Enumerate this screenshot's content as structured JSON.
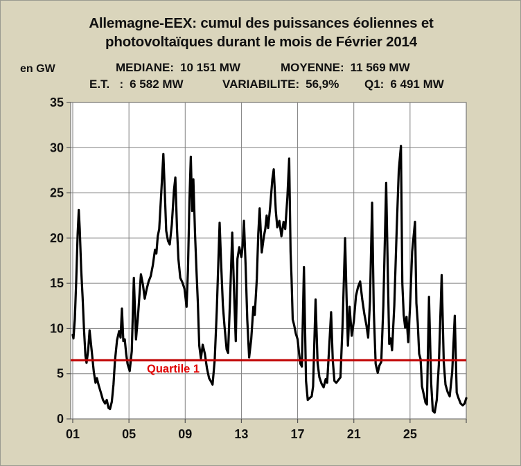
{
  "title": {
    "line1": "Allemagne-EEX: cumul des puissances  éoliennes et",
    "line2": "photovoltaïques durant le mois de Février 2014"
  },
  "stats": {
    "line1": [
      {
        "label": "MEDIANE:",
        "value": "10 151 MW"
      },
      {
        "label": "MOYENNE:",
        "value": "11 569 MW"
      }
    ],
    "line2": [
      {
        "label": "E.T.   :",
        "value": "6 582 MW"
      },
      {
        "label": "VARIABILITE:",
        "value": "56,9%"
      },
      {
        "label": "Q1:",
        "value": "6 491 MW"
      }
    ]
  },
  "y_axis_unit": "en GW",
  "colors": {
    "background": "#dad5bc",
    "plot_background": "#ffffff",
    "gridline": "#808080",
    "frame": "#787878",
    "series": "#000000",
    "quartile_line": "#c00000",
    "quartile_text": "#e00000",
    "text": "#111111"
  },
  "chart_data": {
    "type": "line",
    "title": "Allemagne-EEX: cumul des puissances éoliennes et photovoltaïques durant le mois de Février 2014",
    "ylabel": "en GW",
    "xlabel": "",
    "xlim": [
      1,
      29
    ],
    "ylim": [
      0,
      35
    ],
    "grid": true,
    "y_ticks": [
      0,
      5,
      10,
      15,
      20,
      25,
      30,
      35
    ],
    "x_tick_days": [
      1,
      5,
      9,
      13,
      17,
      21,
      25,
      29
    ],
    "x_tick_labels": [
      "01",
      "05",
      "09",
      "13",
      "17",
      "21",
      "25",
      ""
    ],
    "quartile1_line": {
      "value_gw": 6.49,
      "label": "Quartile 1"
    },
    "statistics": {
      "mediane_mw": "10 151",
      "moyenne_mw": "11 569",
      "ecart_type_mw": "6 582",
      "variabilite_pct": "56,9",
      "q1_mw": "6 491"
    },
    "series": [
      {
        "unit": "GW",
        "x_unit": "jour",
        "points": [
          [
            1.0,
            9.3
          ],
          [
            1.05,
            8.9
          ],
          [
            1.15,
            11.0
          ],
          [
            1.25,
            15.5
          ],
          [
            1.35,
            20.5
          ],
          [
            1.43,
            23.1
          ],
          [
            1.5,
            21.0
          ],
          [
            1.6,
            16.5
          ],
          [
            1.7,
            13.5
          ],
          [
            1.8,
            10.0
          ],
          [
            1.9,
            7.0
          ],
          [
            1.98,
            6.2
          ],
          [
            2.1,
            7.6
          ],
          [
            2.2,
            9.8
          ],
          [
            2.35,
            7.5
          ],
          [
            2.5,
            5.2
          ],
          [
            2.62,
            4.0
          ],
          [
            2.72,
            4.5
          ],
          [
            2.85,
            3.7
          ],
          [
            3.0,
            2.9
          ],
          [
            3.15,
            2.1
          ],
          [
            3.3,
            1.7
          ],
          [
            3.42,
            2.1
          ],
          [
            3.55,
            1.2
          ],
          [
            3.65,
            1.1
          ],
          [
            3.78,
            1.9
          ],
          [
            3.9,
            3.8
          ],
          [
            4.0,
            6.4
          ],
          [
            4.15,
            8.7
          ],
          [
            4.3,
            9.7
          ],
          [
            4.4,
            9.0
          ],
          [
            4.5,
            12.2
          ],
          [
            4.6,
            8.6
          ],
          [
            4.7,
            8.8
          ],
          [
            4.8,
            7.2
          ],
          [
            4.9,
            6.1
          ],
          [
            5.05,
            5.3
          ],
          [
            5.2,
            7.5
          ],
          [
            5.35,
            15.6
          ],
          [
            5.5,
            8.8
          ],
          [
            5.65,
            11.5
          ],
          [
            5.85,
            16.0
          ],
          [
            6.0,
            14.8
          ],
          [
            6.12,
            13.3
          ],
          [
            6.25,
            14.3
          ],
          [
            6.4,
            15.2
          ],
          [
            6.55,
            15.8
          ],
          [
            6.7,
            17.0
          ],
          [
            6.85,
            18.7
          ],
          [
            6.95,
            18.3
          ],
          [
            7.05,
            20.2
          ],
          [
            7.15,
            21.0
          ],
          [
            7.28,
            24.5
          ],
          [
            7.45,
            29.3
          ],
          [
            7.55,
            25.0
          ],
          [
            7.65,
            20.8
          ],
          [
            7.78,
            19.7
          ],
          [
            7.9,
            19.3
          ],
          [
            8.05,
            21.5
          ],
          [
            8.2,
            25.3
          ],
          [
            8.3,
            26.7
          ],
          [
            8.42,
            21.0
          ],
          [
            8.52,
            17.7
          ],
          [
            8.65,
            15.6
          ],
          [
            8.8,
            15.1
          ],
          [
            8.95,
            14.4
          ],
          [
            9.1,
            12.4
          ],
          [
            9.2,
            16.5
          ],
          [
            9.3,
            24.0
          ],
          [
            9.4,
            29.0
          ],
          [
            9.5,
            23.0
          ],
          [
            9.58,
            26.5
          ],
          [
            9.7,
            20.5
          ],
          [
            9.8,
            16.6
          ],
          [
            9.9,
            13.0
          ],
          [
            10.0,
            8.1
          ],
          [
            10.12,
            6.7
          ],
          [
            10.25,
            8.2
          ],
          [
            10.4,
            7.2
          ],
          [
            10.55,
            5.6
          ],
          [
            10.7,
            4.5
          ],
          [
            10.85,
            4.1
          ],
          [
            10.95,
            3.8
          ],
          [
            11.1,
            6.5
          ],
          [
            11.25,
            12.0
          ],
          [
            11.45,
            21.7
          ],
          [
            11.55,
            17.5
          ],
          [
            11.68,
            12.6
          ],
          [
            11.8,
            10.2
          ],
          [
            11.95,
            7.7
          ],
          [
            12.05,
            7.3
          ],
          [
            12.2,
            13.5
          ],
          [
            12.35,
            20.6
          ],
          [
            12.5,
            13.0
          ],
          [
            12.6,
            8.6
          ],
          [
            12.72,
            17.7
          ],
          [
            12.85,
            19.0
          ],
          [
            13.0,
            17.9
          ],
          [
            13.08,
            19.0
          ],
          [
            13.18,
            21.9
          ],
          [
            13.3,
            17.0
          ],
          [
            13.42,
            11.0
          ],
          [
            13.55,
            6.8
          ],
          [
            13.7,
            8.8
          ],
          [
            13.85,
            12.4
          ],
          [
            13.95,
            11.5
          ],
          [
            14.1,
            15.5
          ],
          [
            14.2,
            20.5
          ],
          [
            14.3,
            23.3
          ],
          [
            14.45,
            18.4
          ],
          [
            14.6,
            20.2
          ],
          [
            14.7,
            21.0
          ],
          [
            14.8,
            22.5
          ],
          [
            14.9,
            21.1
          ],
          [
            15.05,
            23.5
          ],
          [
            15.2,
            26.5
          ],
          [
            15.3,
            27.6
          ],
          [
            15.45,
            23.0
          ],
          [
            15.55,
            21.2
          ],
          [
            15.7,
            21.9
          ],
          [
            15.85,
            20.2
          ],
          [
            16.0,
            21.8
          ],
          [
            16.12,
            21.0
          ],
          [
            16.27,
            24.5
          ],
          [
            16.4,
            28.8
          ],
          [
            16.5,
            18.5
          ],
          [
            16.57,
            15.6
          ],
          [
            16.65,
            11.0
          ],
          [
            16.75,
            10.4
          ],
          [
            16.88,
            9.4
          ],
          [
            17.0,
            8.8
          ],
          [
            17.1,
            7.3
          ],
          [
            17.2,
            6.1
          ],
          [
            17.3,
            5.8
          ],
          [
            17.45,
            16.8
          ],
          [
            17.6,
            4.2
          ],
          [
            17.72,
            2.1
          ],
          [
            17.85,
            2.3
          ],
          [
            18.0,
            2.5
          ],
          [
            18.1,
            3.6
          ],
          [
            18.28,
            13.2
          ],
          [
            18.42,
            6.2
          ],
          [
            18.55,
            4.6
          ],
          [
            18.7,
            3.9
          ],
          [
            18.85,
            3.5
          ],
          [
            19.0,
            4.4
          ],
          [
            19.1,
            4.0
          ],
          [
            19.25,
            8.0
          ],
          [
            19.38,
            11.8
          ],
          [
            19.5,
            6.5
          ],
          [
            19.62,
            4.2
          ],
          [
            19.75,
            4.0
          ],
          [
            19.9,
            4.3
          ],
          [
            20.05,
            4.6
          ],
          [
            20.2,
            10.5
          ],
          [
            20.38,
            20.0
          ],
          [
            20.48,
            13.5
          ],
          [
            20.58,
            8.1
          ],
          [
            20.7,
            12.4
          ],
          [
            20.85,
            9.2
          ],
          [
            21.0,
            10.8
          ],
          [
            21.15,
            13.6
          ],
          [
            21.3,
            14.6
          ],
          [
            21.45,
            15.2
          ],
          [
            21.6,
            13.2
          ],
          [
            21.75,
            11.6
          ],
          [
            21.9,
            10.3
          ],
          [
            22.02,
            9.0
          ],
          [
            22.15,
            13.0
          ],
          [
            22.3,
            23.9
          ],
          [
            22.42,
            12.0
          ],
          [
            22.55,
            6.1
          ],
          [
            22.7,
            5.1
          ],
          [
            22.82,
            5.9
          ],
          [
            22.95,
            6.3
          ],
          [
            23.1,
            12.5
          ],
          [
            23.3,
            26.1
          ],
          [
            23.42,
            16.0
          ],
          [
            23.52,
            8.3
          ],
          [
            23.62,
            8.9
          ],
          [
            23.72,
            7.6
          ],
          [
            23.88,
            12.5
          ],
          [
            24.05,
            21.0
          ],
          [
            24.2,
            27.5
          ],
          [
            24.35,
            30.2
          ],
          [
            24.45,
            15.0
          ],
          [
            24.55,
            11.5
          ],
          [
            24.65,
            10.1
          ],
          [
            24.75,
            11.3
          ],
          [
            24.87,
            8.5
          ],
          [
            25.0,
            12.5
          ],
          [
            25.15,
            18.5
          ],
          [
            25.35,
            21.8
          ],
          [
            25.45,
            12.8
          ],
          [
            25.55,
            10.6
          ],
          [
            25.65,
            7.2
          ],
          [
            25.75,
            6.6
          ],
          [
            25.85,
            3.6
          ],
          [
            25.95,
            2.9
          ],
          [
            26.1,
            1.8
          ],
          [
            26.2,
            1.6
          ],
          [
            26.35,
            13.5
          ],
          [
            26.5,
            4.0
          ],
          [
            26.62,
            0.9
          ],
          [
            26.75,
            0.7
          ],
          [
            26.9,
            2.1
          ],
          [
            27.05,
            6.0
          ],
          [
            27.25,
            15.9
          ],
          [
            27.4,
            6.3
          ],
          [
            27.52,
            3.8
          ],
          [
            27.67,
            3.0
          ],
          [
            27.82,
            2.5
          ],
          [
            28.0,
            5.2
          ],
          [
            28.18,
            11.4
          ],
          [
            28.32,
            2.9
          ],
          [
            28.45,
            2.3
          ],
          [
            28.6,
            1.7
          ],
          [
            28.75,
            1.5
          ],
          [
            28.88,
            1.7
          ],
          [
            29.0,
            2.3
          ]
        ]
      }
    ]
  }
}
